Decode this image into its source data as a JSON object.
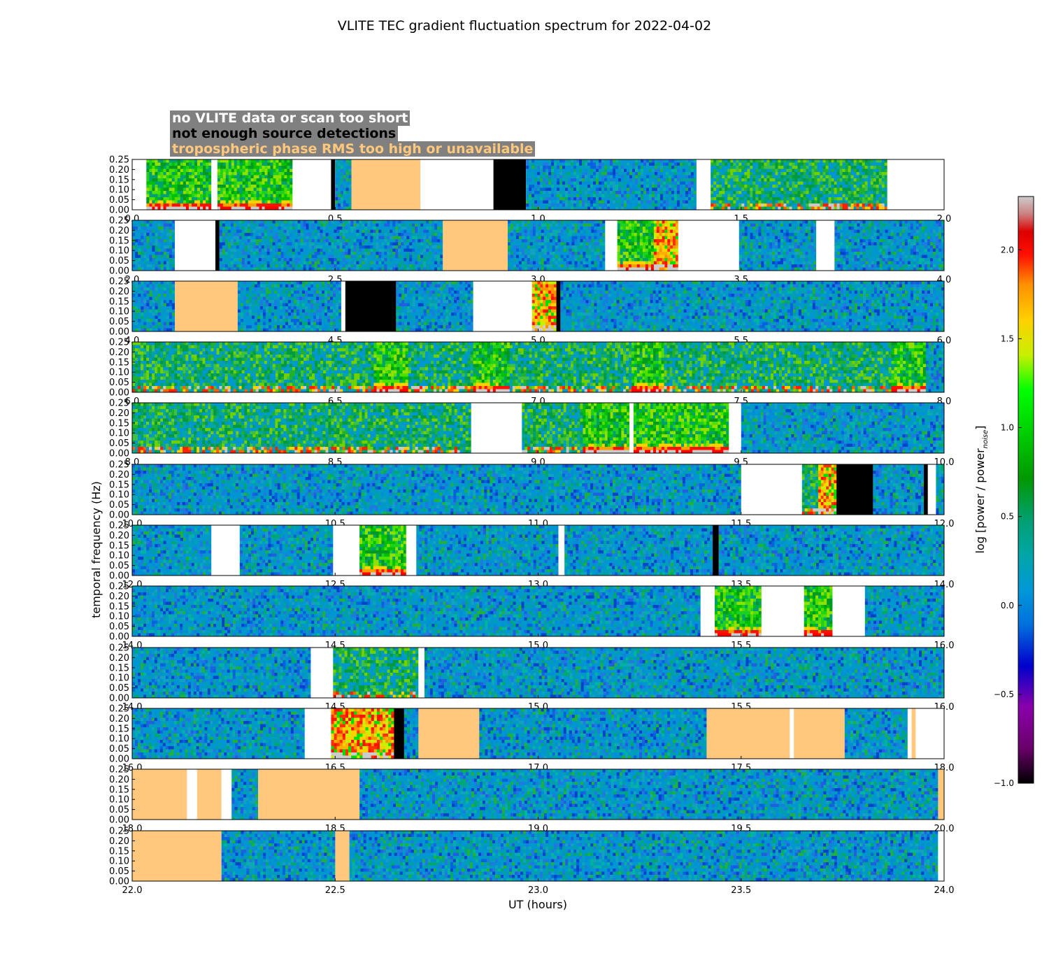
{
  "chart_data": {
    "type": "heatmap",
    "title": "VLITE TEC gradient fluctuation spectrum for 2022-04-02",
    "xlabel": "UT (hours)",
    "ylabel": "temporal frequency (Hz)",
    "colorbar_label": "log [power / power",
    "colorbar_label_sub": "noise",
    "colorbar_label_end": "]",
    "colorbar_range": [
      -1.0,
      2.3
    ],
    "colorbar_ticks": [
      "2.0",
      "1.5",
      "1.0",
      "0.5",
      "0.0",
      "−0.5",
      "−1.0"
    ],
    "colorbar_tick_values": [
      2.0,
      1.5,
      1.0,
      0.5,
      0.0,
      -0.5,
      -1.0
    ],
    "ylim": [
      0,
      0.25
    ],
    "y_ticks": [
      "0.25",
      "0.20",
      "0.15",
      "0.10",
      "0.05",
      "0.00"
    ],
    "legend": [
      {
        "label": "no VLITE data or scan too short",
        "color": "#ffffff"
      },
      {
        "label": "not enough source detections",
        "color": "#000000"
      },
      {
        "label": "tropospheric phase RMS too high or unavailable",
        "color": "#ffc87c"
      }
    ],
    "panels": [
      {
        "x_ticks": [
          "0.0",
          "0.5",
          "1.0",
          "1.5",
          "2.0"
        ],
        "range": [
          0,
          2
        ],
        "segments": [
          [
            "none",
            0,
            0.035
          ],
          [
            "data",
            0.035,
            0.195,
            "high"
          ],
          [
            "none",
            0.195,
            0.21
          ],
          [
            "data",
            0.21,
            0.395,
            "high"
          ],
          [
            "none",
            0.395,
            0.49
          ],
          [
            "flag",
            0.49,
            0.5
          ],
          [
            "data",
            0.5,
            0.54,
            "low"
          ],
          [
            "tropo",
            0.54,
            0.71
          ],
          [
            "none",
            0.71,
            0.89
          ],
          [
            "flag",
            0.89,
            0.97
          ],
          [
            "data",
            0.97,
            1.39,
            "low"
          ],
          [
            "none",
            1.39,
            1.425
          ],
          [
            "data",
            1.425,
            1.86,
            "mid"
          ],
          [
            "none",
            1.86,
            2
          ]
        ]
      },
      {
        "x_ticks": [
          "2.0",
          "2.5",
          "3.0",
          "3.5",
          "4.0"
        ],
        "range": [
          2,
          4
        ],
        "segments": [
          [
            "data",
            2,
            2.105,
            "low"
          ],
          [
            "none",
            2.105,
            2.205
          ],
          [
            "flag",
            2.205,
            2.215
          ],
          [
            "data",
            2.215,
            2.765,
            "low"
          ],
          [
            "tropo",
            2.765,
            2.925
          ],
          [
            "data",
            2.925,
            3.165,
            "low"
          ],
          [
            "none",
            3.165,
            3.195
          ],
          [
            "data",
            3.195,
            3.285,
            "high"
          ],
          [
            "data",
            3.285,
            3.345,
            "vhigh"
          ],
          [
            "none",
            3.345,
            3.495
          ],
          [
            "data",
            3.495,
            3.685,
            "low"
          ],
          [
            "none",
            3.685,
            3.73
          ],
          [
            "data",
            3.73,
            4,
            "low"
          ]
        ]
      },
      {
        "x_ticks": [
          "4.0",
          "4.5",
          "5.0",
          "5.5",
          "6.0"
        ],
        "range": [
          4,
          6
        ],
        "segments": [
          [
            "data",
            4,
            4.105,
            "low"
          ],
          [
            "tropo",
            4.105,
            4.26
          ],
          [
            "data",
            4.26,
            4.515,
            "low"
          ],
          [
            "none",
            4.515,
            4.525
          ],
          [
            "flag",
            4.525,
            4.65
          ],
          [
            "data",
            4.65,
            4.84,
            "low"
          ],
          [
            "none",
            4.84,
            4.985
          ],
          [
            "data",
            4.985,
            5.045,
            "vhigh"
          ],
          [
            "flag",
            5.045,
            5.055
          ],
          [
            "data",
            5.055,
            6,
            "low"
          ]
        ]
      },
      {
        "x_ticks": [
          "6.0",
          "6.5",
          "7.0",
          "7.5",
          "8.0"
        ],
        "range": [
          6,
          8
        ],
        "segments": [
          [
            "data",
            6,
            6.595,
            "mid"
          ],
          [
            "data",
            6.595,
            6.68,
            "high"
          ],
          [
            "data",
            6.68,
            6.84,
            "mid"
          ],
          [
            "data",
            6.84,
            6.93,
            "high"
          ],
          [
            "data",
            6.93,
            7.23,
            "mid"
          ],
          [
            "data",
            7.23,
            7.31,
            "high"
          ],
          [
            "data",
            7.31,
            7.87,
            "mid"
          ],
          [
            "data",
            7.87,
            7.955,
            "high"
          ],
          [
            "data",
            7.955,
            8,
            "low"
          ]
        ]
      },
      {
        "x_ticks": [
          "8.0",
          "8.5",
          "9.0",
          "9.5",
          "10.0"
        ],
        "range": [
          8,
          10
        ],
        "segments": [
          [
            "data",
            8,
            8.835,
            "mid"
          ],
          [
            "none",
            8.835,
            8.96
          ],
          [
            "data",
            8.96,
            9.11,
            "mid"
          ],
          [
            "data",
            9.11,
            9.225,
            "high"
          ],
          [
            "none",
            9.225,
            9.235
          ],
          [
            "data",
            9.235,
            9.47,
            "high"
          ],
          [
            "none",
            9.47,
            9.5
          ],
          [
            "data",
            9.5,
            10,
            "low"
          ]
        ]
      },
      {
        "x_ticks": [
          "10.0",
          "10.5",
          "11.0",
          "11.5",
          "12.0"
        ],
        "range": [
          10,
          12
        ],
        "segments": [
          [
            "data",
            10,
            11.5,
            "low"
          ],
          [
            "none",
            11.5,
            11.65
          ],
          [
            "data",
            11.65,
            11.69,
            "mid"
          ],
          [
            "data",
            11.69,
            11.735,
            "vhigh"
          ],
          [
            "flag",
            11.735,
            11.825
          ],
          [
            "data",
            11.825,
            11.95,
            "low"
          ],
          [
            "flag",
            11.95,
            11.96
          ],
          [
            "none",
            11.96,
            11.98
          ],
          [
            "data",
            11.98,
            12,
            "low"
          ]
        ]
      },
      {
        "x_ticks": [
          "12.0",
          "12.5",
          "13.0",
          "13.5",
          "14.0"
        ],
        "range": [
          12,
          14
        ],
        "segments": [
          [
            "data",
            12,
            12.195,
            "low"
          ],
          [
            "none",
            12.195,
            12.265
          ],
          [
            "data",
            12.265,
            12.495,
            "low"
          ],
          [
            "none",
            12.495,
            12.56
          ],
          [
            "data",
            12.56,
            12.675,
            "high"
          ],
          [
            "none",
            12.675,
            12.7
          ],
          [
            "data",
            12.7,
            13.05,
            "low"
          ],
          [
            "none",
            13.05,
            13.065
          ],
          [
            "data",
            13.065,
            13.43,
            "low"
          ],
          [
            "flag",
            13.43,
            13.445
          ],
          [
            "data",
            13.445,
            14,
            "low"
          ]
        ]
      },
      {
        "x_ticks": [
          "14.0",
          "14.5",
          "15.0",
          "15.5",
          "16.0"
        ],
        "range": [
          14,
          16
        ],
        "segments": [
          [
            "data",
            14,
            15.4,
            "low"
          ],
          [
            "none",
            15.4,
            15.435
          ],
          [
            "data",
            15.435,
            15.55,
            "high"
          ],
          [
            "none",
            15.55,
            15.655
          ],
          [
            "data",
            15.655,
            15.725,
            "high"
          ],
          [
            "none",
            15.725,
            15.805
          ],
          [
            "data",
            15.805,
            16,
            "low"
          ]
        ]
      },
      {
        "x_ticks": [
          "14.0",
          "14.5",
          "15.0",
          "15.5",
          "16.0"
        ],
        "range": [
          14,
          16
        ],
        "segments": [
          [
            "data",
            14,
            14.44,
            "low"
          ],
          [
            "none",
            14.44,
            14.495
          ],
          [
            "data",
            14.495,
            14.705,
            "mid"
          ],
          [
            "none",
            14.705,
            14.72
          ],
          [
            "data",
            14.72,
            16,
            "low"
          ]
        ]
      },
      {
        "x_ticks": [
          "16.0",
          "16.5",
          "17.0",
          "17.5",
          "18.0"
        ],
        "range": [
          16,
          18
        ],
        "segments": [
          [
            "data",
            16,
            16.425,
            "low"
          ],
          [
            "none",
            16.425,
            16.49
          ],
          [
            "data",
            16.49,
            16.645,
            "vhigh"
          ],
          [
            "flag",
            16.645,
            16.67
          ],
          [
            "data",
            16.67,
            16.705,
            "low"
          ],
          [
            "tropo",
            16.705,
            16.855
          ],
          [
            "data",
            16.855,
            17.415,
            "low"
          ],
          [
            "tropo",
            17.415,
            17.62
          ],
          [
            "none",
            17.62,
            17.63
          ],
          [
            "tropo",
            17.63,
            17.755
          ],
          [
            "data",
            17.755,
            17.91,
            "low"
          ],
          [
            "none",
            17.91,
            17.92
          ],
          [
            "tropo",
            17.92,
            17.93
          ],
          [
            "none",
            17.93,
            18
          ]
        ]
      },
      {
        "x_ticks": [
          "18.0",
          "18.5",
          "19.0",
          "19.5",
          "20.0"
        ],
        "range": [
          18,
          20
        ],
        "segments": [
          [
            "tropo",
            18,
            18.135
          ],
          [
            "none",
            18.135,
            18.16
          ],
          [
            "tropo",
            18.16,
            18.22
          ],
          [
            "none",
            18.22,
            18.245
          ],
          [
            "data",
            18.245,
            18.31,
            "low"
          ],
          [
            "tropo",
            18.31,
            18.56
          ],
          [
            "data",
            18.56,
            19.985,
            "low"
          ],
          [
            "tropo",
            19.985,
            20
          ]
        ]
      },
      {
        "x_ticks": [
          "22.0",
          "22.5",
          "23.0",
          "23.5",
          "24.0"
        ],
        "range": [
          22,
          24
        ],
        "segments": [
          [
            "tropo",
            22,
            22.22
          ],
          [
            "data",
            22.22,
            22.5,
            "low"
          ],
          [
            "tropo",
            22.5,
            22.535
          ],
          [
            "data",
            22.535,
            23.985,
            "low"
          ],
          [
            "none",
            23.985,
            24
          ]
        ]
      }
    ]
  }
}
